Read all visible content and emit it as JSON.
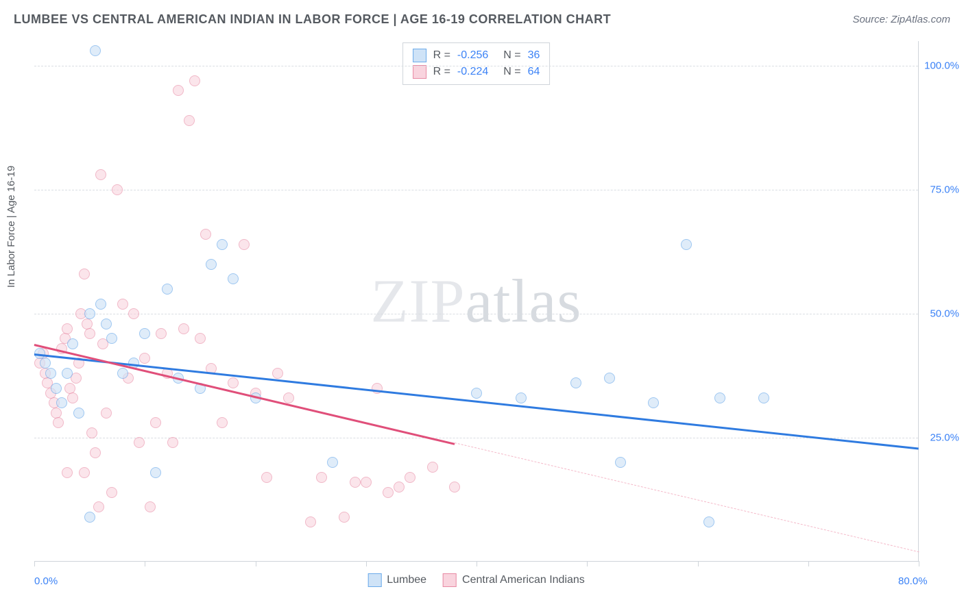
{
  "title": "LUMBEE VS CENTRAL AMERICAN INDIAN IN LABOR FORCE | AGE 16-19 CORRELATION CHART",
  "source": "Source: ZipAtlas.com",
  "y_axis_label": "In Labor Force | Age 16-19",
  "watermark": "ZIPatlas",
  "chart": {
    "type": "scatter",
    "xlim": [
      0,
      80
    ],
    "ylim": [
      0,
      105
    ],
    "x_ticks": [
      0,
      10,
      20,
      30,
      40,
      50,
      60,
      70,
      80
    ],
    "x_tick_labels": {
      "0": "0.0%",
      "80": "80.0%"
    },
    "y_grid": [
      25,
      50,
      75,
      100
    ],
    "y_tick_labels": {
      "25": "25.0%",
      "50": "50.0%",
      "75": "75.0%",
      "100": "100.0%"
    },
    "background_color": "#ffffff",
    "grid_color": "#d9dde2",
    "axis_color": "#cfd4da",
    "tick_label_color": "#3b82f6",
    "marker_radius": 8,
    "marker_stroke_width": 1.5,
    "series": [
      {
        "name": "Lumbee",
        "label": "Lumbee",
        "fill": "#cfe3f7",
        "stroke": "#6baaea",
        "fill_opacity": 0.65,
        "R": "-0.256",
        "N": "36",
        "trend": {
          "x1": 0,
          "y1": 42,
          "x2": 80,
          "y2": 23,
          "color": "#2f7be0",
          "width": 2.5
        },
        "points": [
          [
            5.5,
            103
          ],
          [
            0.5,
            42
          ],
          [
            1,
            40
          ],
          [
            1.5,
            38
          ],
          [
            2,
            35
          ],
          [
            2.5,
            32
          ],
          [
            3,
            38
          ],
          [
            3.5,
            44
          ],
          [
            4,
            30
          ],
          [
            5,
            50
          ],
          [
            6,
            52
          ],
          [
            6.5,
            48
          ],
          [
            7,
            45
          ],
          [
            8,
            38
          ],
          [
            9,
            40
          ],
          [
            10,
            46
          ],
          [
            11,
            18
          ],
          [
            12,
            55
          ],
          [
            13,
            37
          ],
          [
            15,
            35
          ],
          [
            16,
            60
          ],
          [
            17,
            64
          ],
          [
            18,
            57
          ],
          [
            20,
            33
          ],
          [
            27,
            20
          ],
          [
            40,
            34
          ],
          [
            44,
            33
          ],
          [
            49,
            36
          ],
          [
            52,
            37
          ],
          [
            53,
            20
          ],
          [
            56,
            32
          ],
          [
            59,
            64
          ],
          [
            62,
            33
          ],
          [
            61,
            8
          ],
          [
            66,
            33
          ],
          [
            5,
            9
          ]
        ]
      },
      {
        "name": "Central American Indians",
        "label": "Central American Indians",
        "fill": "#f9d4de",
        "stroke": "#e88aa4",
        "fill_opacity": 0.6,
        "R": "-0.224",
        "N": "64",
        "trend": {
          "x1": 0,
          "y1": 44,
          "x2": 38,
          "y2": 24,
          "color": "#e04f7a",
          "width": 2.5
        },
        "trend_dashed": {
          "x1": 38,
          "y1": 24,
          "x2": 80,
          "y2": 2,
          "color": "#f4b8c8"
        },
        "points": [
          [
            0.5,
            40
          ],
          [
            0.8,
            42
          ],
          [
            1,
            38
          ],
          [
            1.2,
            36
          ],
          [
            1.5,
            34
          ],
          [
            1.8,
            32
          ],
          [
            2,
            30
          ],
          [
            2.2,
            28
          ],
          [
            2.5,
            43
          ],
          [
            2.8,
            45
          ],
          [
            3,
            47
          ],
          [
            3.2,
            35
          ],
          [
            3.5,
            33
          ],
          [
            3.8,
            37
          ],
          [
            4,
            40
          ],
          [
            4.2,
            50
          ],
          [
            4.5,
            58
          ],
          [
            4.8,
            48
          ],
          [
            5,
            46
          ],
          [
            5.2,
            26
          ],
          [
            5.5,
            22
          ],
          [
            5.8,
            11
          ],
          [
            6,
            78
          ],
          [
            6.2,
            44
          ],
          [
            6.5,
            30
          ],
          [
            7,
            14
          ],
          [
            7.5,
            75
          ],
          [
            8,
            52
          ],
          [
            8.5,
            37
          ],
          [
            9,
            50
          ],
          [
            9.5,
            24
          ],
          [
            10,
            41
          ],
          [
            10.5,
            11
          ],
          [
            11,
            28
          ],
          [
            11.5,
            46
          ],
          [
            12,
            38
          ],
          [
            12.5,
            24
          ],
          [
            13,
            95
          ],
          [
            13.5,
            47
          ],
          [
            14,
            89
          ],
          [
            14.5,
            97
          ],
          [
            15,
            45
          ],
          [
            15.5,
            66
          ],
          [
            16,
            39
          ],
          [
            17,
            28
          ],
          [
            18,
            36
          ],
          [
            19,
            64
          ],
          [
            20,
            34
          ],
          [
            21,
            17
          ],
          [
            22,
            38
          ],
          [
            23,
            33
          ],
          [
            25,
            8
          ],
          [
            26,
            17
          ],
          [
            28,
            9
          ],
          [
            29,
            16
          ],
          [
            30,
            16
          ],
          [
            31,
            35
          ],
          [
            32,
            14
          ],
          [
            33,
            15
          ],
          [
            34,
            17
          ],
          [
            36,
            19
          ],
          [
            38,
            15
          ],
          [
            3,
            18
          ],
          [
            4.5,
            18
          ]
        ]
      }
    ],
    "stats_legend": {
      "border_color": "#cfd4da",
      "text_color": "#555a60",
      "value_color": "#3b82f6"
    },
    "bottom_legend": {
      "text_color": "#555a60"
    }
  }
}
